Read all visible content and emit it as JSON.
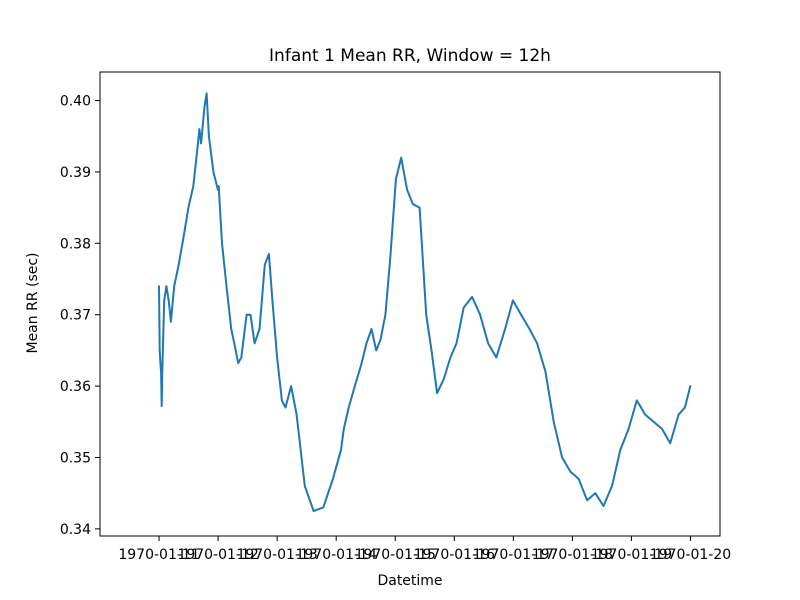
{
  "chart_data": {
    "type": "line",
    "title": "Infant 1 Mean RR, Window = 12h",
    "xlabel": "Datetime",
    "ylabel": "Mean RR (sec)",
    "xlim": [
      "1970-01-10T00:00",
      "1970-01-20T12:00"
    ],
    "ylim": [
      0.339,
      0.404
    ],
    "x_ticks": [
      "1970-01-11",
      "1970-01-12",
      "1970-01-13",
      "1970-01-14",
      "1970-01-15",
      "1970-01-16",
      "1970-01-17",
      "1970-01-18",
      "1970-01-19",
      "1970-01-20"
    ],
    "x_tick_labels": [
      "1970-01-11",
      "1970-01-12",
      "1970-01-13",
      "1970-01-14",
      "1970-01-15",
      "1970-01-16",
      "1970-01-17",
      "1970-01-18",
      "1970-01-19",
      "1970-01-20"
    ],
    "y_ticks": [
      0.34,
      0.35,
      0.36,
      0.37,
      0.38,
      0.39,
      0.4
    ],
    "y_tick_labels": [
      "0.34",
      "0.35",
      "0.36",
      "0.37",
      "0.38",
      "0.39",
      "0.40"
    ],
    "grid": false,
    "colors": {
      "line": "#1f77b4"
    },
    "series": [
      {
        "x": [
          "1970-01-11T00:00",
          "1970-01-11T00:15",
          "1970-01-11T00:35",
          "1970-01-11T00:50",
          "1970-01-11T01:05",
          "1970-01-11T01:20",
          "1970-01-11T02:05",
          "1970-01-11T03:00",
          "1970-01-11T03:55",
          "1970-01-11T04:50",
          "1970-01-11T05:20",
          "1970-01-11T06:10",
          "1970-01-11T08:00",
          "1970-01-11T10:00",
          "1970-01-11T11:55",
          "1970-01-11T13:55",
          "1970-01-11T15:30",
          "1970-01-11T16:25",
          "1970-01-11T17:05",
          "1970-01-11T18:25",
          "1970-01-11T19:20",
          "1970-01-11T20:15",
          "1970-01-11T22:05",
          "1970-01-11T23:55",
          "1970-01-12T00:15",
          "1970-01-12T01:35",
          "1970-01-12T03:25",
          "1970-01-12T05:20",
          "1970-01-12T06:35",
          "1970-01-12T08:10",
          "1970-01-12T09:25",
          "1970-01-12T11:35",
          "1970-01-12T13:10",
          "1970-01-12T14:50",
          "1970-01-12T16:50",
          "1970-01-12T19:00",
          "1970-01-12T20:40",
          "1970-01-12T22:05",
          "1970-01-13T00:00",
          "1970-01-13T01:55",
          "1970-01-13T03:25",
          "1970-01-13T05:40",
          "1970-01-13T07:55",
          "1970-01-13T11:15",
          "1970-01-13T14:50",
          "1970-01-13T18:45",
          "1970-01-13T22:40",
          "1970-01-14T01:55",
          "1970-01-14T03:05",
          "1970-01-14T05:05",
          "1970-01-14T07:35",
          "1970-01-14T10:10",
          "1970-01-14T12:20",
          "1970-01-14T14:20",
          "1970-01-14T16:15",
          "1970-01-14T18:00",
          "1970-01-14T20:00",
          "1970-01-14T22:00",
          "1970-01-15T00:15",
          "1970-01-15T02:25",
          "1970-01-15T04:50",
          "1970-01-15T07:10",
          "1970-01-15T09:55",
          "1970-01-15T12:35",
          "1970-01-15T14:45",
          "1970-01-15T17:00",
          "1970-01-15T19:45",
          "1970-01-15T22:25",
          "1970-01-16T00:55",
          "1970-01-16T03:50",
          "1970-01-16T07:15",
          "1970-01-16T10:30",
          "1970-01-16T13:45",
          "1970-01-16T17:05",
          "1970-01-16T20:40",
          "1970-01-16T23:50",
          "1970-01-17T03:10",
          "1970-01-17T06:35",
          "1970-01-17T09:40",
          "1970-01-17T13:05",
          "1970-01-17T16:25",
          "1970-01-17T19:50",
          "1970-01-17T23:15",
          "1970-01-18T02:35",
          "1970-01-18T06:00",
          "1970-01-18T09:20",
          "1970-01-18T12:40",
          "1970-01-18T16:05",
          "1970-01-18T19:25",
          "1970-01-18T22:50",
          "1970-01-19T02:10",
          "1970-01-19T05:35",
          "1970-01-19T09:00",
          "1970-01-19T12:25",
          "1970-01-19T15:45",
          "1970-01-19T19:10",
          "1970-01-19T21:45",
          "1970-01-19T23:55"
        ],
        "values": [
          0.374,
          0.365,
          0.363,
          0.362,
          0.3572,
          0.362,
          0.372,
          0.374,
          0.372,
          0.369,
          0.371,
          0.374,
          0.377,
          0.381,
          0.385,
          0.388,
          0.393,
          0.396,
          0.394,
          0.399,
          0.401,
          0.395,
          0.39,
          0.3875,
          0.388,
          0.38,
          0.374,
          0.368,
          0.366,
          0.3632,
          0.364,
          0.37,
          0.37,
          0.366,
          0.368,
          0.377,
          0.3785,
          0.372,
          0.364,
          0.358,
          0.357,
          0.36,
          0.356,
          0.346,
          0.3425,
          0.343,
          0.347,
          0.351,
          0.354,
          0.357,
          0.36,
          0.363,
          0.366,
          0.368,
          0.365,
          0.3665,
          0.37,
          0.378,
          0.389,
          0.392,
          0.3875,
          0.3855,
          0.385,
          0.37,
          0.365,
          0.359,
          0.361,
          0.364,
          0.366,
          0.371,
          0.3725,
          0.37,
          0.366,
          0.364,
          0.368,
          0.372,
          0.37,
          0.368,
          0.366,
          0.362,
          0.355,
          0.35,
          0.348,
          0.347,
          0.344,
          0.345,
          0.3432,
          0.346,
          0.351,
          0.354,
          0.358,
          0.356,
          0.355,
          0.354,
          0.352,
          0.356,
          0.357,
          0.36
        ]
      }
    ]
  }
}
